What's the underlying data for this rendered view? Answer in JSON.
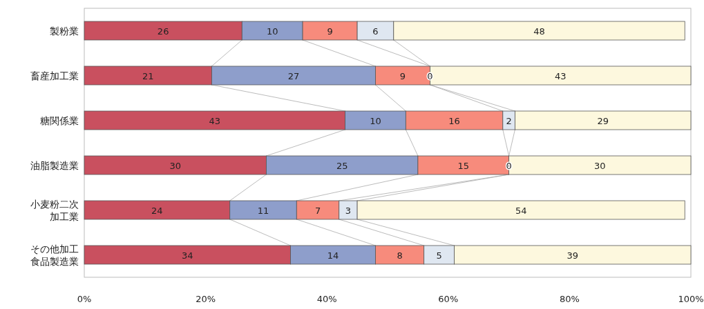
{
  "chart_data": {
    "type": "bar",
    "orientation": "horizontal",
    "stacked": true,
    "data_labels": true,
    "categories": [
      "製粉業",
      "畜産加工業",
      "糖関係業",
      "油脂製造業",
      "小麦粉二次加工業",
      "その他加工食品製造業"
    ],
    "series": [
      {
        "color": "#c9505f",
        "values": [
          26,
          21,
          43,
          30,
          24,
          34
        ]
      },
      {
        "color": "#8e9ecb",
        "values": [
          10,
          27,
          10,
          25,
          11,
          14
        ]
      },
      {
        "color": "#f78b7c",
        "values": [
          9,
          9,
          16,
          15,
          7,
          8
        ]
      },
      {
        "color": "#dfe7f1",
        "values": [
          6,
          0,
          2,
          0,
          3,
          5
        ],
        "value_labels": [
          "6",
          null,
          "2",
          null,
          "3",
          "5"
        ]
      },
      {
        "color": "#fdf8de",
        "values": [
          48,
          43,
          29,
          30,
          54,
          39
        ]
      }
    ],
    "annotations": [
      {
        "text": "0",
        "x": 57,
        "y": "畜産加工業"
      },
      {
        "text": "0",
        "x": 70,
        "y": "油脂製造業"
      }
    ],
    "xlim": [
      0,
      100
    ],
    "xticks": [
      {
        "value": 0,
        "label": "0%"
      },
      {
        "value": 20,
        "label": "20%"
      },
      {
        "value": 40,
        "label": "40%"
      },
      {
        "value": 60,
        "label": "60%"
      },
      {
        "value": 80,
        "label": "80%"
      },
      {
        "value": 100,
        "label": "100%"
      }
    ]
  }
}
